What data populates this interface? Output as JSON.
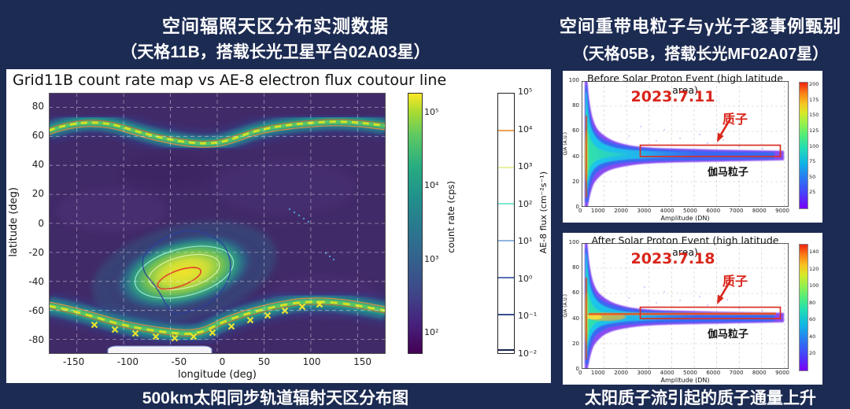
{
  "theme": {
    "background": "#1c2b52",
    "panel_background": "#ffffff",
    "title_color": "#ffffff",
    "annotation_red": "#d9251b"
  },
  "left": {
    "title": "空间辐照天区分布实测数据",
    "subtitle": "（天格11B，搭载长光卫星平台02A03星）",
    "caption": "500km太阳同步轨道辐射天区分布图"
  },
  "right": {
    "title": "空间重带电粒子与γ光子逐事例甄别",
    "subtitle": "（天格05B，搭载长光MF02A07星）",
    "caption": "太阳质子流引起的质子通量上升"
  },
  "chart_data": [
    {
      "type": "heatmap",
      "title": "Grid11B count rate map vs AE-8 electron flux coutour line",
      "xlabel": "longitude (deg)",
      "ylabel": "latitude (deg)",
      "xlim": [
        -180,
        180
      ],
      "ylim": [
        -90,
        90
      ],
      "xticks": [
        "-150",
        "-100",
        "-50",
        "0",
        "50",
        "100",
        "150"
      ],
      "yticks": [
        "-80",
        "-60",
        "-40",
        "-20",
        "0",
        "20",
        "40",
        "60",
        "80"
      ],
      "grid": true,
      "colormap": "viridis",
      "colorbar": {
        "label": "count rate (cps)",
        "scale": "log",
        "ticks": [
          "10²",
          "10³",
          "10⁴",
          "10⁵"
        ]
      },
      "contour_legend": {
        "label": "AE-8 flux (cm⁻²s⁻¹)",
        "scale": "log",
        "ticks": [
          "10⁻²",
          "10⁻¹",
          "10⁰",
          "10¹",
          "10²",
          "10³",
          "10⁴",
          "10⁵"
        ],
        "line_colors": [
          "#16244e",
          "#35508c",
          "#5a70b8",
          "#92b4e0",
          "#7fe8cc",
          "#e9f0a4",
          "#f0a058"
        ]
      },
      "features": [
        {
          "name": "north-auroral-band",
          "lat_range": [
            55,
            75
          ],
          "count_rate_cps": "1e4–1e5"
        },
        {
          "name": "south-auroral-band",
          "lat_range": [
            -80,
            -55
          ],
          "count_rate_cps": "1e4–1e5",
          "marker": "yellow X peaks"
        },
        {
          "name": "south-atlantic-anomaly",
          "center": {
            "lon": -35,
            "lat": -32
          },
          "peak_count_rate_cps": 100000,
          "contour": "red ellipse at core"
        }
      ]
    },
    {
      "type": "scatter",
      "title": "Before Solar Proton Event (high latitude area)",
      "date_annotation": "2023.7.11",
      "xlabel": "Amplitude (DN)",
      "ylabel": "Q/A (A.U.)",
      "xlim": [
        0,
        9200
      ],
      "ylim": [
        0,
        100
      ],
      "xticks": [
        "0",
        "1000",
        "2000",
        "3000",
        "4000",
        "5000",
        "6000",
        "7000",
        "8000",
        "9000"
      ],
      "yticks": [
        "0",
        "20",
        "40",
        "60",
        "80",
        "100"
      ],
      "colorbar": {
        "colormap": "rainbow",
        "max": 205,
        "ticks": [
          "25",
          "50",
          "75",
          "100",
          "125",
          "150",
          "175",
          "200"
        ]
      },
      "annotations": [
        {
          "text": "质子",
          "color": "#d9251b",
          "points_to": "proton-band-box"
        },
        {
          "text": "伽马粒子",
          "color": "#000000"
        }
      ],
      "features": [
        {
          "name": "proton-band",
          "x_range": [
            2600,
            8800
          ],
          "y_range": [
            40,
            49
          ],
          "boxed": true
        },
        {
          "name": "gamma-band",
          "y_range": [
            36,
            45
          ]
        },
        {
          "name": "low-amplitude-funnel",
          "x_range": [
            100,
            2500
          ],
          "y_range": [
            0,
            100
          ],
          "core": "red ridge near x≈200"
        }
      ]
    },
    {
      "type": "scatter",
      "title": "After Solar Proton Event (high latitude area)",
      "date_annotation": "2023.7.18",
      "xlabel": "Amplitude (DN)",
      "ylabel": "Q/A (A.U.)",
      "xlim": [
        0,
        9200
      ],
      "ylim": [
        0,
        100
      ],
      "xticks": [
        "0",
        "1000",
        "2000",
        "3000",
        "4000",
        "5000",
        "6000",
        "7000",
        "8000",
        "9000"
      ],
      "yticks": [
        "0",
        "20",
        "40",
        "60",
        "80",
        "100"
      ],
      "colorbar": {
        "colormap": "rainbow",
        "max": 150,
        "ticks": [
          "20",
          "40",
          "60",
          "80",
          "100",
          "120",
          "140"
        ]
      },
      "annotations": [
        {
          "text": "质子",
          "color": "#d9251b",
          "points_to": "proton-band-box"
        },
        {
          "text": "伽马粒子",
          "color": "#000000"
        }
      ],
      "features": [
        {
          "name": "proton-band",
          "x_range": [
            2600,
            8800
          ],
          "y_range": [
            40,
            49
          ],
          "boxed": true,
          "note": "intense red/orange ridge at y≈44 — elevated proton flux"
        },
        {
          "name": "gamma-band",
          "y_range": [
            36,
            45
          ]
        },
        {
          "name": "low-amplitude-funnel",
          "x_range": [
            100,
            2500
          ],
          "y_range": [
            0,
            100
          ]
        }
      ]
    }
  ]
}
